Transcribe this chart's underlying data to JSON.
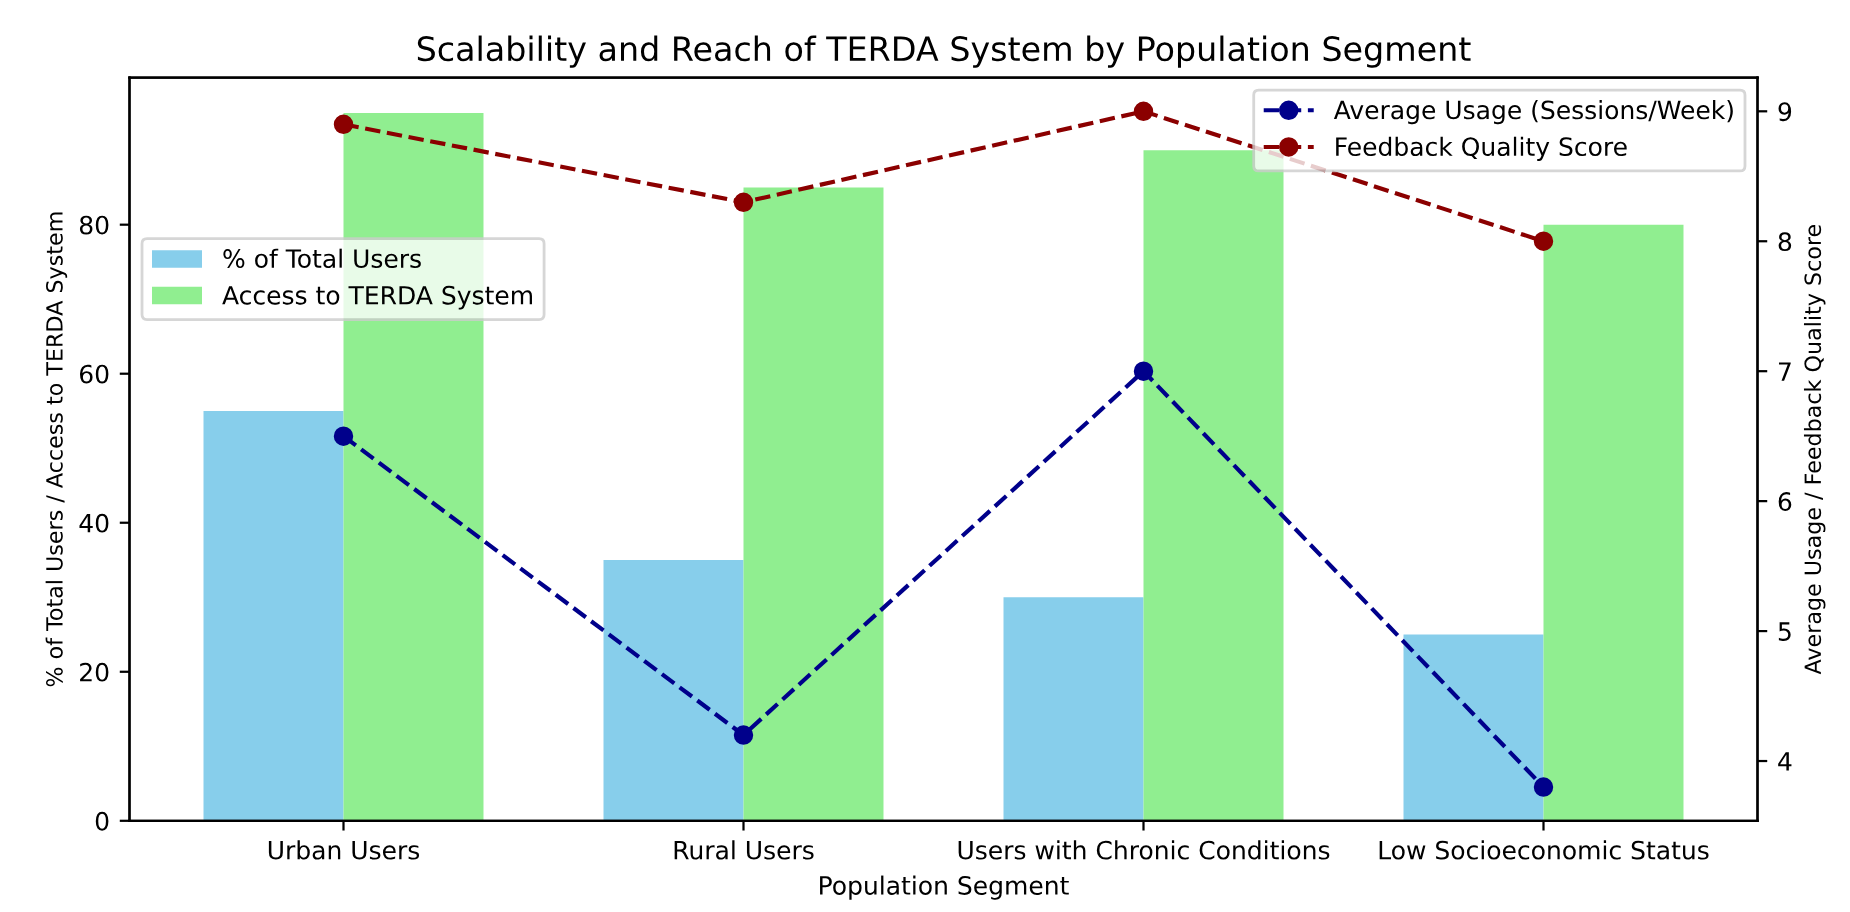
{
  "chart_data": {
    "type": "bar",
    "title": "Scalability and Reach of TERDA System by Population Segment",
    "xlabel": "Population Segment",
    "ylabel": "% of Total Users / Access to TERDA System",
    "y2label": "Average Usage / Feedback Quality Score",
    "categories": [
      "Urban Users",
      "Rural Users",
      "Users with Chronic Conditions",
      "Low Socioeconomic Status"
    ],
    "series": [
      {
        "name": "% of Total Users",
        "color": "#87ceeb",
        "values": [
          55,
          35,
          30,
          25
        ]
      },
      {
        "name": "Access to TERDA System",
        "color": "#90ee90",
        "values": [
          95,
          85,
          90,
          80
        ]
      },
      {
        "name": "Average Usage (Sessions/Week)",
        "type": "line",
        "axis": "y2",
        "color": "#00008b",
        "values": [
          6.5,
          4.2,
          7.0,
          3.8
        ],
        "marker": "circle",
        "line_style": "dashed"
      },
      {
        "name": "Feedback Quality Score",
        "type": "line",
        "axis": "y2",
        "color": "#8b0000",
        "values": [
          8.9,
          8.3,
          9.0,
          8.0
        ],
        "marker": "circle",
        "line_style": "dashed"
      }
    ],
    "ylim": [
      0,
      99.75
    ],
    "yticks": [
      0,
      20,
      40,
      60,
      80
    ],
    "y2lim": [
      3.54,
      9.26
    ],
    "y2ticks": [
      4,
      5,
      6,
      7,
      8,
      9
    ],
    "legend": "top left",
    "grid": false
  }
}
